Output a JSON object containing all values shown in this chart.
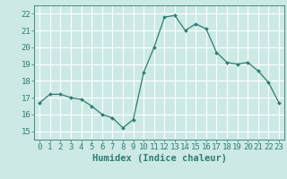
{
  "x": [
    0,
    1,
    2,
    3,
    4,
    5,
    6,
    7,
    8,
    9,
    10,
    11,
    12,
    13,
    14,
    15,
    16,
    17,
    18,
    19,
    20,
    21,
    22,
    23
  ],
  "y": [
    16.7,
    17.2,
    17.2,
    17.0,
    16.9,
    16.5,
    16.0,
    15.8,
    15.2,
    15.7,
    18.5,
    20.0,
    21.8,
    21.9,
    21.0,
    21.4,
    21.1,
    19.7,
    19.1,
    19.0,
    19.1,
    18.6,
    17.9,
    16.7
  ],
  "line_color": "#2e7d72",
  "marker": "D",
  "marker_size": 2.0,
  "bg_color": "#cce9e5",
  "grid_color": "#ffffff",
  "xlabel": "Humidex (Indice chaleur)",
  "ylim": [
    14.5,
    22.5
  ],
  "xlim": [
    -0.5,
    23.5
  ],
  "yticks": [
    15,
    16,
    17,
    18,
    19,
    20,
    21,
    22
  ],
  "xticks": [
    0,
    1,
    2,
    3,
    4,
    5,
    6,
    7,
    8,
    9,
    10,
    11,
    12,
    13,
    14,
    15,
    16,
    17,
    18,
    19,
    20,
    21,
    22,
    23
  ],
  "label_fontsize": 7.5,
  "tick_fontsize": 6.5
}
